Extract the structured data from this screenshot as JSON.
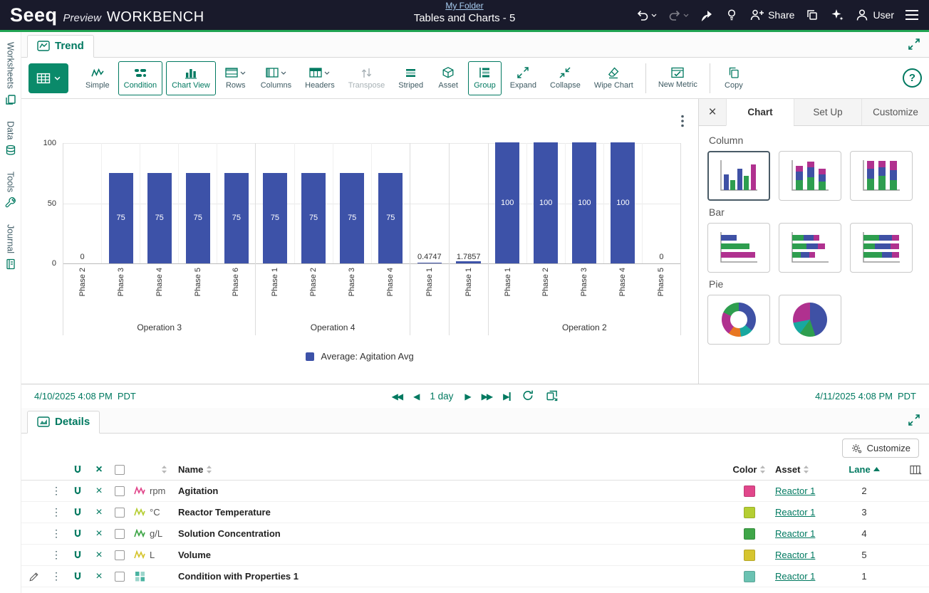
{
  "accent": {
    "teal": "#007960",
    "green": "#21a453",
    "bar_blue": "#3D52A8"
  },
  "header": {
    "logo": "Seeq",
    "preview": "Preview",
    "workbench": "WORKBENCH",
    "folder_link": "My Folder",
    "doc_title": "Tables and Charts - 5",
    "share_label": "Share",
    "user_label": "User"
  },
  "sidebar": {
    "items": [
      {
        "label": "Worksheets"
      },
      {
        "label": "Data"
      },
      {
        "label": "Tools"
      },
      {
        "label": "Journal"
      }
    ]
  },
  "trend": {
    "tab": "Trend",
    "toolbar": [
      {
        "label": "Simple"
      },
      {
        "label": "Condition",
        "active": true
      },
      {
        "label": "Chart View",
        "active": true
      },
      {
        "label": "Rows",
        "dropdown": true
      },
      {
        "label": "Columns",
        "dropdown": true
      },
      {
        "label": "Headers",
        "dropdown": true
      },
      {
        "label": "Transpose",
        "disabled": true
      },
      {
        "label": "Striped"
      },
      {
        "label": "Asset"
      },
      {
        "label": "Group",
        "active": true
      },
      {
        "label": "Expand"
      },
      {
        "label": "Collapse"
      },
      {
        "label": "Wipe Chart"
      },
      {
        "label": "New Metric"
      },
      {
        "label": "Copy"
      }
    ]
  },
  "chart_data": {
    "type": "bar",
    "title": "",
    "legend": "Average: Agitation Avg",
    "ylim": [
      0,
      100
    ],
    "yticks": [
      "100",
      "50",
      "0"
    ],
    "grid": true,
    "series_color": "#3D52A8",
    "groups": [
      {
        "label": "Operation 3",
        "bars": [
          {
            "phase": "Phase 2",
            "value": 0,
            "label": "0"
          },
          {
            "phase": "Phase 3",
            "value": 75,
            "label": "75"
          },
          {
            "phase": "Phase 4",
            "value": 75,
            "label": "75"
          },
          {
            "phase": "Phase 5",
            "value": 75,
            "label": "75"
          },
          {
            "phase": "Phase 6",
            "value": 75,
            "label": "75"
          }
        ]
      },
      {
        "label": "Operation 4",
        "bars": [
          {
            "phase": "Phase 1",
            "value": 75,
            "label": "75"
          },
          {
            "phase": "Phase 2",
            "value": 75,
            "label": "75"
          },
          {
            "phase": "Phase 3",
            "value": 75,
            "label": "75"
          },
          {
            "phase": "Phase 4",
            "value": 75,
            "label": "75"
          }
        ]
      },
      {
        "label": "",
        "bars": [
          {
            "phase": "Phase 1",
            "value": 0.4747,
            "label": "0.4747"
          }
        ]
      },
      {
        "label": "",
        "bars": [
          {
            "phase": "Phase 1",
            "value": 1.7857,
            "label": "1.7857"
          }
        ]
      },
      {
        "label": "Operation 2",
        "bars": [
          {
            "phase": "Phase 1",
            "value": 100,
            "label": "100"
          },
          {
            "phase": "Phase 2",
            "value": 100,
            "label": "100"
          },
          {
            "phase": "Phase 3",
            "value": 100,
            "label": "100"
          },
          {
            "phase": "Phase 4",
            "value": 100,
            "label": "100"
          },
          {
            "phase": "Phase 5",
            "value": 0,
            "label": "0"
          }
        ]
      }
    ]
  },
  "chart_panel": {
    "tabs": [
      {
        "label": "Chart",
        "active": true
      },
      {
        "label": "Set Up",
        "active": false
      },
      {
        "label": "Customize",
        "active": false
      }
    ],
    "sections": [
      {
        "label": "Column"
      },
      {
        "label": "Bar"
      },
      {
        "label": "Pie"
      }
    ]
  },
  "daterange": {
    "start": "4/10/2025 4:08 PM",
    "start_tz": "PDT",
    "duration": "1 day",
    "end": "4/11/2025 4:08 PM",
    "end_tz": "PDT"
  },
  "details": {
    "tab": "Details",
    "customize_label": "Customize",
    "columns": {
      "name": "Name",
      "color": "Color",
      "asset": "Asset",
      "lane": "Lane"
    },
    "rows": [
      {
        "type": "signal",
        "unit": "rpm",
        "name": "Agitation",
        "color": "#E1478B",
        "asset": "Reactor 1",
        "lane": "2"
      },
      {
        "type": "signal",
        "unit": "°C",
        "name": "Reactor Temperature",
        "color": "#B5CE33",
        "asset": "Reactor 1",
        "lane": "3"
      },
      {
        "type": "signal",
        "unit": "g/L",
        "name": "Solution Concentration",
        "color": "#3FA648",
        "asset": "Reactor 1",
        "lane": "4"
      },
      {
        "type": "signal",
        "unit": "L",
        "name": "Volume",
        "color": "#D6C52F",
        "asset": "Reactor 1",
        "lane": "5"
      },
      {
        "type": "condition",
        "unit": "",
        "name": "Condition with Properties 1",
        "color": "#6BC2B2",
        "asset": "Reactor 1",
        "lane": "1",
        "editable": true
      }
    ]
  }
}
